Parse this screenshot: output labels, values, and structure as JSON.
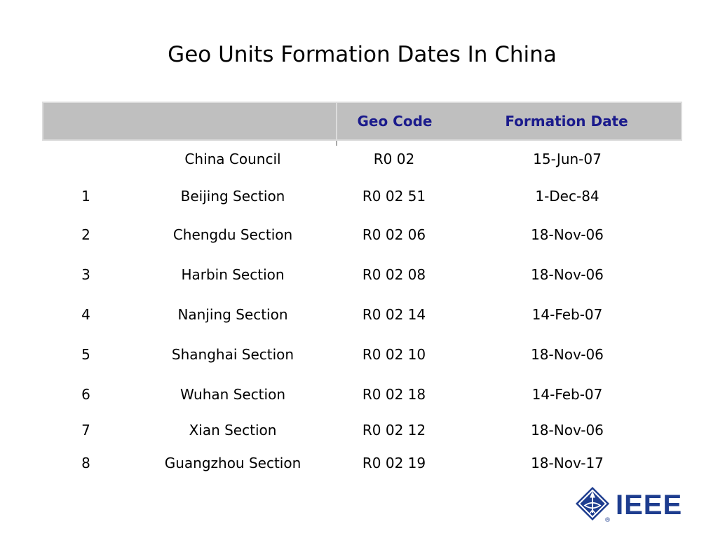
{
  "slide": {
    "title": "Geo Units Formation Dates In China"
  },
  "table": {
    "header": {
      "num": "",
      "name": "",
      "geo_code": "Geo Code",
      "formation_date": "Formation Date"
    },
    "rows": [
      {
        "num": "",
        "name": "China Council",
        "code": "R0 02",
        "date": "15-Jun-07"
      },
      {
        "num": "1",
        "name": "Beijing Section",
        "code": "R0 02 51",
        "date": "1-Dec-84"
      },
      {
        "num": "2",
        "name": "Chengdu Section",
        "code": "R0 02 06",
        "date": "18-Nov-06"
      },
      {
        "num": "3",
        "name": "Harbin Section",
        "code": "R0 02 08",
        "date": "18-Nov-06"
      },
      {
        "num": "4",
        "name": "Nanjing Section",
        "code": "R0 02 14",
        "date": "14-Feb-07"
      },
      {
        "num": "5",
        "name": "Shanghai Section",
        "code": "R0 02 10",
        "date": "18-Nov-06"
      },
      {
        "num": "6",
        "name": "Wuhan Section",
        "code": "R0 02 18",
        "date": "14-Feb-07"
      },
      {
        "num": "7",
        "name": "Xian Section",
        "code": "R0 02 12",
        "date": "18-Nov-06"
      },
      {
        "num": "8",
        "name": "Guangzhou Section",
        "code": "R0 02 19",
        "date": "18-Nov-17"
      }
    ]
  },
  "logo": {
    "text": "IEEE",
    "registered": "®"
  },
  "colors": {
    "header_bg": "#bfbfbf",
    "header_border": "#dcdcdc",
    "header_text": "#1b1b8c",
    "body_text": "#000000",
    "logo_blue": "#1e3d8f",
    "background": "#ffffff"
  }
}
